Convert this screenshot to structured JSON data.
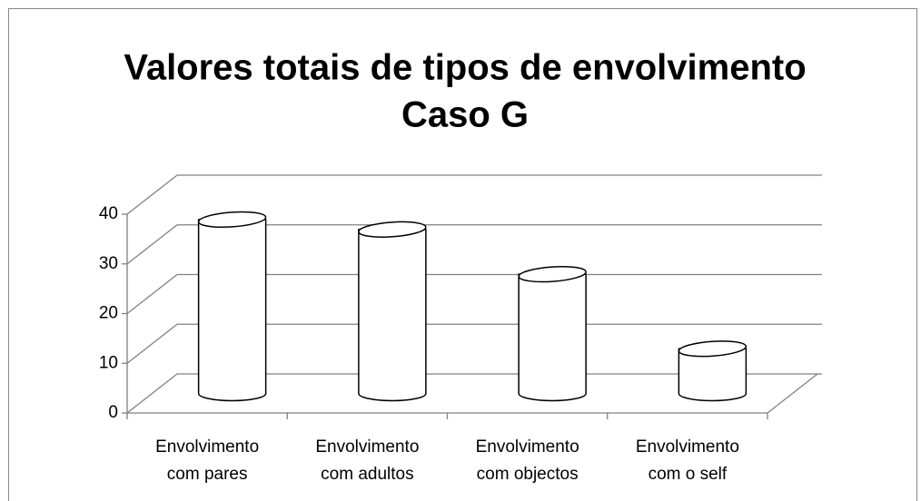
{
  "chart_data": {
    "type": "cylinder",
    "title": [
      "Valores totais de tipos de envolvimento",
      "Caso G"
    ],
    "categories": [
      "Envolvimento com pares",
      "Envolvimento com adultos",
      "Envolvimento com objectos",
      "Envolvimento com o self"
    ],
    "values": [
      35,
      33,
      24,
      9
    ],
    "ylim": [
      0,
      40
    ],
    "yticks": [
      0,
      10,
      20,
      30,
      40
    ],
    "grid": true
  }
}
